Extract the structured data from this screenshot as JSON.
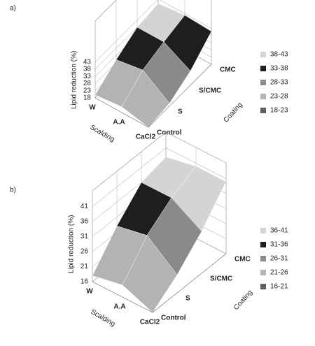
{
  "chart_data": [
    {
      "type": "surface",
      "panel_label": "a)",
      "zlabel": "Lipid reduction (%)",
      "xlabel": "Scalding",
      "ylabel": "Coating",
      "x": [
        "W",
        "A.A",
        "CaCl2"
      ],
      "y": [
        "Control",
        "S",
        "S/CMC",
        "CMC"
      ],
      "values": [
        [
          20,
          30,
          38,
          40
        ],
        [
          22,
          33,
          38,
          42
        ],
        [
          18,
          20,
          28,
          41
        ]
      ],
      "zlim": [
        18,
        43
      ],
      "zticks": [
        18,
        23,
        28,
        33,
        38,
        43
      ],
      "bands": [
        {
          "label": "38-43",
          "range": [
            38,
            43
          ],
          "color": "#d4d4d4"
        },
        {
          "label": "33-38",
          "range": [
            33,
            38
          ],
          "color": "#1e1e1e"
        },
        {
          "label": "28-33",
          "range": [
            28,
            33
          ],
          "color": "#8a8a8a"
        },
        {
          "label": "23-28",
          "range": [
            23,
            28
          ],
          "color": "#b3b3b3"
        },
        {
          "label": "18-23",
          "range": [
            18,
            23
          ],
          "color": "#5e5e5e"
        }
      ]
    },
    {
      "type": "surface",
      "panel_label": "b)",
      "zlabel": "Lipid reduction (%)",
      "xlabel": "Scalding",
      "ylabel": "Coating",
      "x": [
        "W",
        "A.A",
        "CaCl2"
      ],
      "y": [
        "Control",
        "S",
        "S/CMC",
        "CMC"
      ],
      "values": [
        [
          18,
          28,
          36,
          38
        ],
        [
          20,
          30,
          36,
          40
        ],
        [
          16,
          22,
          30,
          40
        ]
      ],
      "zlim": [
        16,
        41
      ],
      "zticks": [
        16,
        21,
        26,
        31,
        36,
        41
      ],
      "bands": [
        {
          "label": "36-41",
          "range": [
            36,
            41
          ],
          "color": "#d4d4d4"
        },
        {
          "label": "31-36",
          "range": [
            31,
            36
          ],
          "color": "#1e1e1e"
        },
        {
          "label": "26-31",
          "range": [
            26,
            31
          ],
          "color": "#8a8a8a"
        },
        {
          "label": "21-26",
          "range": [
            21,
            26
          ],
          "color": "#b3b3b3"
        },
        {
          "label": "16-21",
          "range": [
            16,
            21
          ],
          "color": "#5e5e5e"
        }
      ]
    }
  ]
}
